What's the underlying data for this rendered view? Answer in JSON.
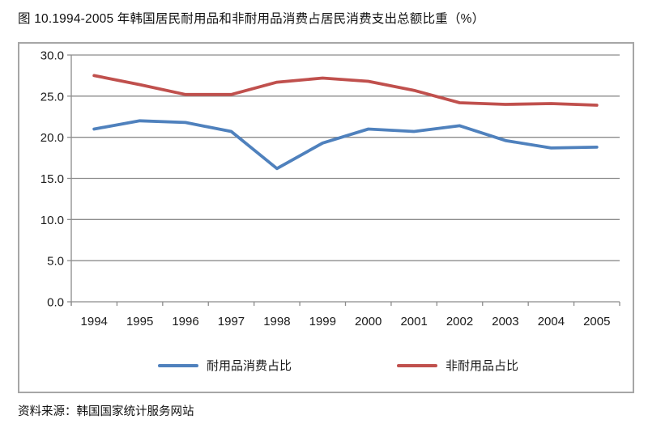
{
  "title": "图 10.1994-2005 年韩国居民耐用品和非耐用品消费占居民消费支出总额比重（%）",
  "source": "资料来源：韩国国家统计服务网站",
  "colors": {
    "durable_line": "#4F81BD",
    "nondurable_line": "#C0504D",
    "gridline": "#8C8C8C",
    "axis": "#8C8C8C",
    "border": "#A6A6A6",
    "label_text": "#1A1A1A"
  },
  "chart_data": {
    "type": "line",
    "categories": [
      "1994",
      "1995",
      "1996",
      "1997",
      "1998",
      "1999",
      "2000",
      "2001",
      "2002",
      "2003",
      "2004",
      "2005"
    ],
    "series": [
      {
        "name": "耐用品消费占比",
        "color_key": "durable_line",
        "values": [
          21.0,
          22.0,
          21.8,
          20.7,
          16.2,
          19.3,
          21.0,
          20.7,
          21.4,
          19.6,
          18.7,
          18.8
        ]
      },
      {
        "name": "非耐用品占比",
        "color_key": "nondurable_line",
        "values": [
          27.5,
          26.4,
          25.2,
          25.2,
          26.7,
          27.2,
          26.8,
          25.7,
          24.2,
          24.0,
          24.1,
          23.9
        ]
      }
    ],
    "title": "图 10.1994-2005 年韩国居民耐用品和非耐用品消费占居民消费支出总额比重（%）",
    "xlabel": "",
    "ylabel": "",
    "ylim": [
      0,
      30
    ],
    "ytick_step": 5,
    "ytick_labels": [
      "0.0",
      "5.0",
      "10.0",
      "15.0",
      "20.0",
      "25.0",
      "30.0"
    ],
    "grid": true,
    "legend_position": "bottom"
  }
}
